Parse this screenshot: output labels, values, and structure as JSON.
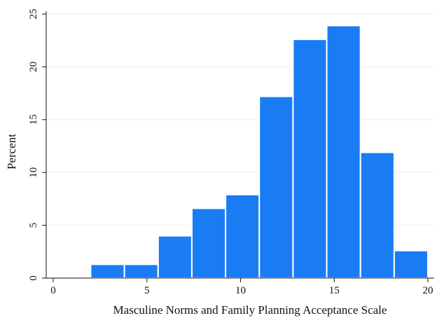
{
  "chart_data": {
    "type": "bar",
    "xlabel": "Masculine Norms and Family Planning Acceptance Scale",
    "ylabel": "Percent",
    "xlim": [
      0,
      20
    ],
    "ylim": [
      0,
      25
    ],
    "x_ticks": [
      0,
      5,
      10,
      15,
      20
    ],
    "y_ticks": [
      0,
      5,
      10,
      15,
      20,
      25
    ],
    "grid": "horizontal",
    "bars": [
      {
        "x_start": 2.0,
        "x_end": 3.8,
        "value": 1.3
      },
      {
        "x_start": 3.8,
        "x_end": 5.6,
        "value": 1.3
      },
      {
        "x_start": 5.6,
        "x_end": 7.4,
        "value": 4.0
      },
      {
        "x_start": 7.4,
        "x_end": 9.2,
        "value": 6.6
      },
      {
        "x_start": 9.2,
        "x_end": 11.0,
        "value": 7.9
      },
      {
        "x_start": 11.0,
        "x_end": 12.8,
        "value": 17.2
      },
      {
        "x_start": 12.8,
        "x_end": 14.6,
        "value": 22.6
      },
      {
        "x_start": 14.6,
        "x_end": 16.4,
        "value": 23.9
      },
      {
        "x_start": 16.4,
        "x_end": 18.2,
        "value": 11.9
      },
      {
        "x_start": 18.2,
        "x_end": 20.0,
        "value": 2.6
      }
    ],
    "colors": {
      "bar_fill": "#1a7cf5",
      "bar_edge": "#ffffff",
      "grid": "#eaeef2",
      "axis": "#111111"
    }
  }
}
